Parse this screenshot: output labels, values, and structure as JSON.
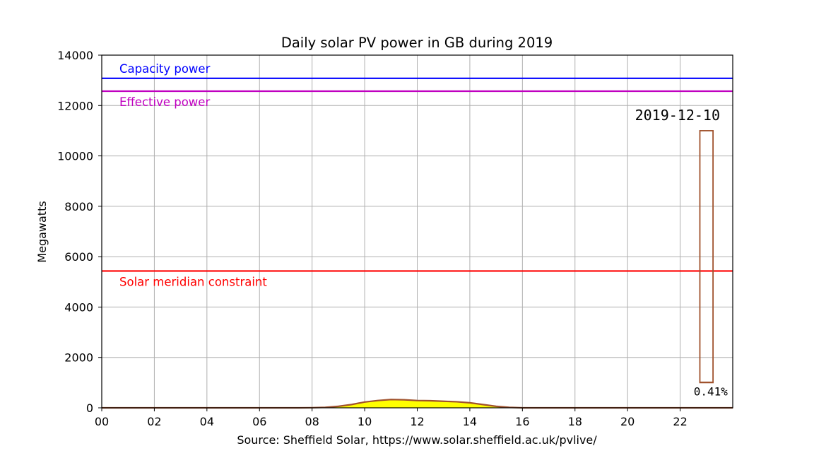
{
  "chart_data": {
    "type": "area",
    "title": "Daily solar PV power in GB during 2019",
    "xlabel": "Source: Sheffield Solar, https://www.solar.sheffield.ac.uk/pvlive/",
    "ylabel": "Megawatts",
    "xlim": [
      0,
      24
    ],
    "ylim": [
      0,
      14000
    ],
    "x_ticks": [
      0,
      2,
      4,
      6,
      8,
      10,
      12,
      14,
      16,
      18,
      20,
      22
    ],
    "x_tick_labels": [
      "00",
      "02",
      "04",
      "06",
      "08",
      "10",
      "12",
      "14",
      "16",
      "18",
      "20",
      "22"
    ],
    "y_ticks": [
      0,
      2000,
      4000,
      6000,
      8000,
      10000,
      12000,
      14000
    ],
    "y_tick_labels": [
      "0",
      "2000",
      "4000",
      "6000",
      "8000",
      "10000",
      "12000",
      "14000"
    ],
    "grid": true,
    "series": {
      "x": [
        0,
        7.5,
        8,
        8.5,
        9,
        9.5,
        10,
        10.5,
        11,
        11.5,
        12,
        12.5,
        13,
        13.5,
        14,
        14.5,
        15,
        15.5,
        16,
        24
      ],
      "y": [
        0,
        0,
        5,
        20,
        60,
        130,
        230,
        290,
        330,
        320,
        290,
        280,
        260,
        240,
        200,
        130,
        60,
        20,
        0,
        0
      ],
      "color": "#a0522d",
      "fill": "#ffff00"
    },
    "reference_lines": [
      {
        "label": "Capacity power",
        "y": 13080,
        "color": "#0000ff"
      },
      {
        "label": "Effective power",
        "y": 12570,
        "color": "#c000c0"
      },
      {
        "label": "Solar meridian constraint",
        "y": 5430,
        "color": "#ff0000"
      }
    ],
    "date_annotation": "2019-12-10",
    "gauge": {
      "percent_label": "0.41%",
      "x_range": [
        22.75,
        23.25
      ],
      "y_range": [
        1000,
        11000
      ],
      "fill_fraction": 0.0041,
      "color": "#a0522d"
    }
  }
}
